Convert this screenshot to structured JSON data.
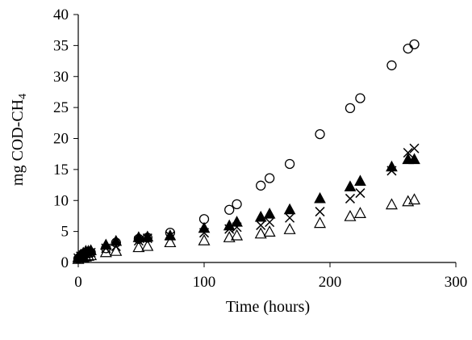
{
  "chart_data": {
    "type": "scatter",
    "title": "",
    "xlabel": "Time (hours)",
    "ylabel": "mg COD-CH",
    "ylabel_subscript": "4",
    "xlim": [
      0,
      300
    ],
    "ylim": [
      0,
      40
    ],
    "xticks": [
      0,
      100,
      200,
      300
    ],
    "yticks": [
      0,
      5,
      10,
      15,
      20,
      25,
      30,
      35,
      40
    ],
    "grid": false,
    "legend": "none",
    "series": [
      {
        "marker": "open-circle",
        "x": [
          0,
          1,
          2,
          3,
          4,
          5,
          6,
          8,
          10,
          22,
          30,
          48,
          55,
          73,
          100,
          120,
          126,
          145,
          152,
          168,
          192,
          216,
          224,
          249,
          262,
          267
        ],
        "y": [
          0.6,
          0.8,
          1.0,
          1.1,
          1.2,
          1.3,
          1.4,
          1.5,
          1.6,
          2.3,
          3.2,
          3.8,
          4.0,
          4.8,
          7.0,
          8.5,
          9.4,
          12.4,
          13.6,
          15.9,
          20.7,
          24.9,
          26.5,
          31.8,
          34.5,
          35.2
        ]
      },
      {
        "marker": "filled-triangle",
        "x": [
          0,
          2,
          4,
          6,
          8,
          10,
          22,
          30,
          48,
          55,
          73,
          100,
          120,
          126,
          145,
          152,
          168,
          192,
          216,
          224,
          249,
          262,
          267
        ],
        "y": [
          0.8,
          1.2,
          1.5,
          1.8,
          1.8,
          1.9,
          2.8,
          3.4,
          4.0,
          4.1,
          4.3,
          5.5,
          5.9,
          6.5,
          7.3,
          7.8,
          8.5,
          10.3,
          12.2,
          13.1,
          15.4,
          16.6,
          16.6
        ]
      },
      {
        "marker": "cross",
        "x": [
          0,
          2,
          4,
          6,
          8,
          10,
          22,
          30,
          48,
          55,
          73,
          100,
          120,
          126,
          145,
          152,
          168,
          192,
          216,
          224,
          249,
          262,
          267
        ],
        "y": [
          0.7,
          1.0,
          1.2,
          1.4,
          1.5,
          1.6,
          2.3,
          2.6,
          3.5,
          3.9,
          4.3,
          4.8,
          5.4,
          5.7,
          6.0,
          6.5,
          7.2,
          8.2,
          10.3,
          11.2,
          14.8,
          17.7,
          18.4
        ]
      },
      {
        "marker": "open-triangle",
        "x": [
          0,
          2,
          4,
          6,
          8,
          10,
          22,
          30,
          48,
          55,
          73,
          100,
          120,
          126,
          145,
          152,
          168,
          192,
          216,
          224,
          249,
          262,
          267
        ],
        "y": [
          0.5,
          0.7,
          0.8,
          0.9,
          1.0,
          1.1,
          1.6,
          1.8,
          2.4,
          2.6,
          3.2,
          3.5,
          4.0,
          4.3,
          4.6,
          4.9,
          5.3,
          6.3,
          7.4,
          7.9,
          9.3,
          9.8,
          10.1
        ]
      }
    ]
  }
}
